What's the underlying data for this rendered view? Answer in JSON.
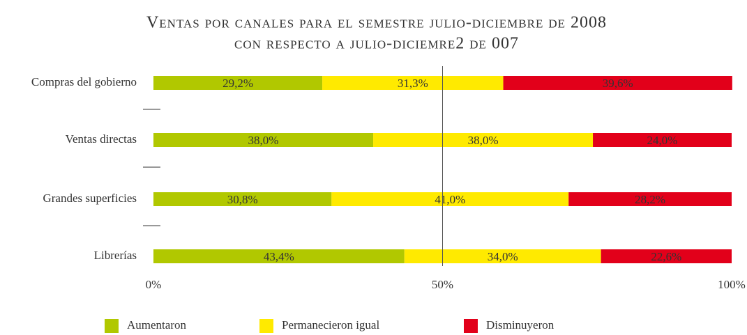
{
  "chart_data": {
    "type": "stacked-bar-horizontal",
    "title": [
      "Ventas por canales para el semestre julio-diciembre de 2008",
      "con respecto a julio-diciemre2 de 007"
    ],
    "categories": [
      "Compras del gobierno",
      "Ventas directas",
      "Grandes superficies",
      "Librerías"
    ],
    "series": [
      {
        "name": "Aumentaron",
        "color": "#b1c800",
        "values": [
          29.2,
          38.0,
          30.8,
          43.4
        ],
        "value_labels": [
          "29,2%",
          "38,0%",
          "30,8%",
          "43,4%"
        ]
      },
      {
        "name": "Permanecieron igual",
        "color": "#ffea00",
        "values": [
          31.3,
          38.0,
          41.0,
          34.0
        ],
        "value_labels": [
          "31,3%",
          "38,0%",
          "41,0%",
          "34,0%"
        ]
      },
      {
        "name": "Disminuyeron",
        "color": "#e2001a",
        "values": [
          39.6,
          24.0,
          28.2,
          22.6
        ],
        "value_labels": [
          "39,6%",
          "24,0%",
          "28,2%",
          "22,6%"
        ]
      }
    ],
    "xlim": [
      0,
      100
    ],
    "xticks": [
      {
        "value": 0,
        "label": "0%"
      },
      {
        "value": 50,
        "label": "50%"
      },
      {
        "value": 100,
        "label": "100%"
      }
    ],
    "legend": "bottom"
  }
}
